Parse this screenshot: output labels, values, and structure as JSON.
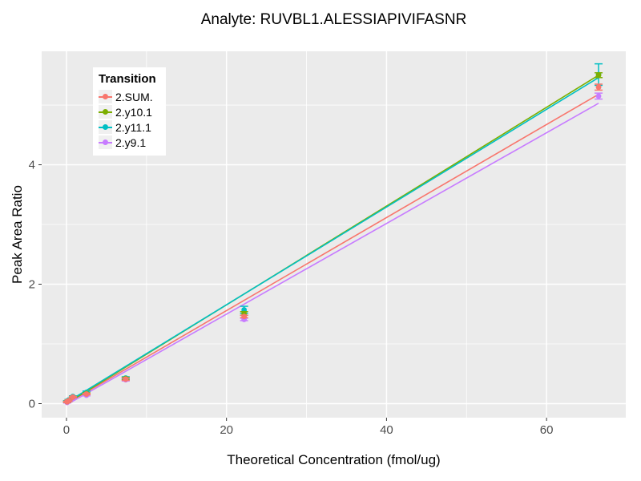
{
  "title": "Analyte: RUVBL1.ALESSIAPIVIFASNR",
  "legend": {
    "title": "Transition",
    "items": [
      {
        "label": "2.SUM.",
        "color": "#F8766D"
      },
      {
        "label": "2.y10.1",
        "color": "#7CAE00"
      },
      {
        "label": "2.y11.1",
        "color": "#00BFC4"
      },
      {
        "label": "2.y9.1",
        "color": "#C77CFF"
      }
    ]
  },
  "colors": {
    "panel_bg": "#EBEBEB",
    "grid": "#FFFFFF",
    "tick_text": "#4D4D4D",
    "tick_mark": "#333333"
  },
  "chart_data": {
    "type": "scatter",
    "title": "Analyte: RUVBL1.ALESSIAPIVIFASNR",
    "xlabel": "Theoretical Concentration (fmol/ug)",
    "ylabel": "Peak Area Ratio",
    "xlim": [
      -3.1,
      69.9
    ],
    "ylim": [
      -0.235,
      5.9
    ],
    "x_ticks": [
      0,
      20,
      40,
      60
    ],
    "x_minor_ticks": [
      10,
      30,
      50,
      70
    ],
    "y_ticks": [
      0,
      2,
      4
    ],
    "y_minor_ticks": [
      1,
      3,
      5
    ],
    "grid": true,
    "legend_position": "top-left-inside",
    "x": [
      0.08,
      0.25,
      0.8,
      2.5,
      7.4,
      22.2,
      66.5
    ],
    "series": [
      {
        "name": "2.SUM.",
        "color": "#F8766D",
        "values": [
          0.03,
          0.05,
          0.11,
          0.16,
          0.41,
          1.46,
          5.3
        ],
        "errors": [
          0.01,
          0.01,
          0.01,
          0.01,
          0.02,
          0.02,
          0.05
        ],
        "fit": {
          "x0": 0,
          "y0": 0.0,
          "x1": 66.5,
          "y1": 5.18
        }
      },
      {
        "name": "2.y10.1",
        "color": "#7CAE00",
        "values": [
          0.03,
          0.05,
          0.11,
          0.17,
          0.42,
          1.51,
          5.5
        ],
        "errors": [
          0.01,
          0.01,
          0.01,
          0.01,
          0.02,
          0.03,
          0.04
        ],
        "fit": {
          "x0": 0,
          "y0": 0.0,
          "x1": 66.5,
          "y1": 5.5
        }
      },
      {
        "name": "2.y11.1",
        "color": "#00BFC4",
        "values": [
          0.04,
          0.06,
          0.12,
          0.19,
          0.43,
          1.57,
          5.51
        ],
        "errors": [
          0.01,
          0.01,
          0.01,
          0.02,
          0.02,
          0.06,
          0.18
        ],
        "fit": {
          "x0": 0,
          "y0": 0.02,
          "x1": 66.5,
          "y1": 5.46
        }
      },
      {
        "name": "2.y9.1",
        "color": "#C77CFF",
        "values": [
          0.02,
          0.04,
          0.1,
          0.14,
          0.4,
          1.41,
          5.15
        ],
        "errors": [
          0.01,
          0.01,
          0.01,
          0.01,
          0.02,
          0.02,
          0.05
        ],
        "fit": {
          "x0": 0,
          "y0": -0.02,
          "x1": 66.5,
          "y1": 5.03
        }
      }
    ]
  }
}
